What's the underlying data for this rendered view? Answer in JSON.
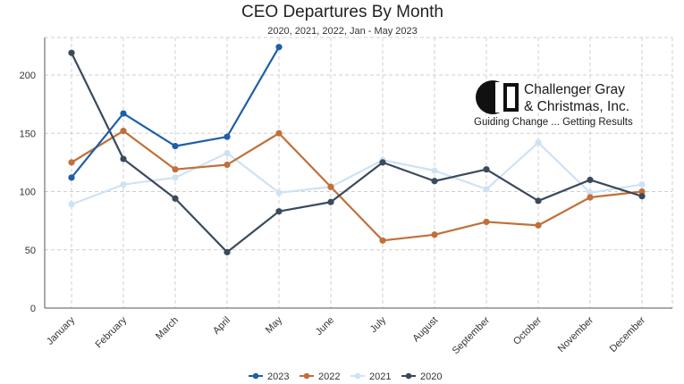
{
  "chart_data": {
    "type": "line",
    "title": "CEO Departures By Month",
    "subtitle": "2020, 2021, 2022, Jan - May 2023",
    "xlabel": "",
    "ylabel": "",
    "categories": [
      "January",
      "February",
      "March",
      "April",
      "May",
      "June",
      "July",
      "August",
      "September",
      "October",
      "November",
      "December"
    ],
    "ylim": [
      0,
      230
    ],
    "yticks": [
      0,
      50,
      100,
      150,
      200
    ],
    "grid": true,
    "legend_position": "bottom",
    "series": [
      {
        "name": "2023",
        "color": "#1f5fa8",
        "values": [
          112,
          167,
          139,
          147,
          224,
          null,
          null,
          null,
          null,
          null,
          null,
          null
        ]
      },
      {
        "name": "2022",
        "color": "#c0703a",
        "values": [
          125,
          152,
          119,
          123,
          150,
          104,
          58,
          63,
          74,
          71,
          95,
          100
        ]
      },
      {
        "name": "2021",
        "color": "#cfe2f3",
        "values": [
          89,
          106,
          112,
          133,
          99,
          104,
          127,
          118,
          102,
          142,
          99,
          106
        ]
      },
      {
        "name": "2020",
        "color": "#3a4a5c",
        "values": [
          219,
          128,
          94,
          48,
          83,
          91,
          125,
          109,
          119,
          92,
          110,
          96
        ]
      }
    ]
  },
  "logo": {
    "line1": "Challenger Gray",
    "line2": "& Christmas, Inc.",
    "tagline": "Guiding Change ... Getting Results"
  }
}
